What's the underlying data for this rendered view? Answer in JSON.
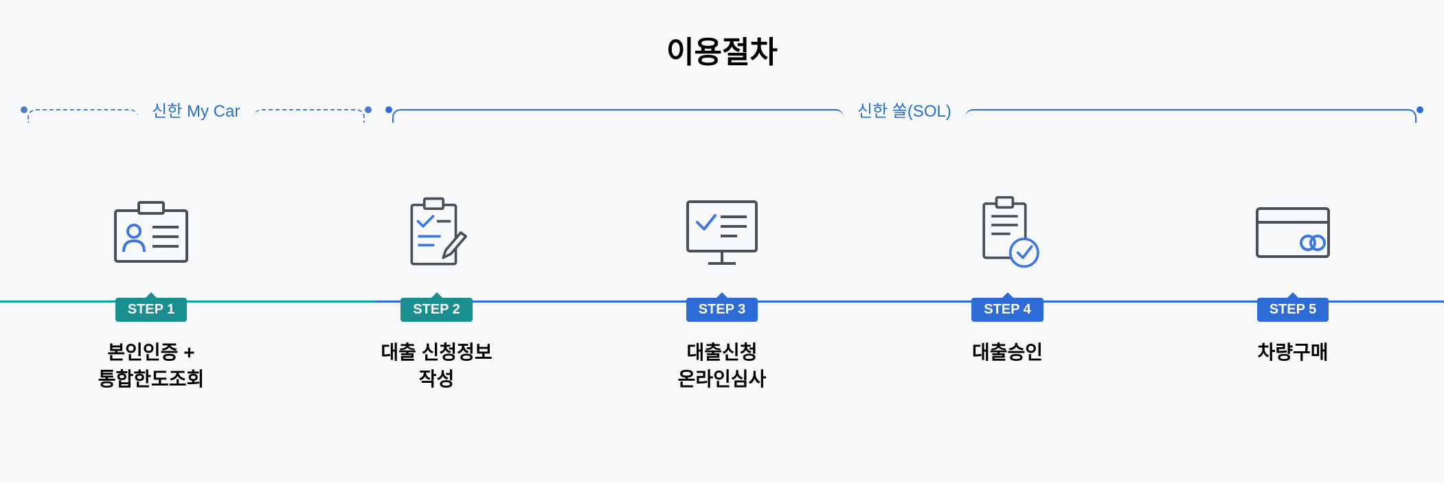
{
  "title": "이용절차",
  "colors": {
    "teal": "#0f9e9e",
    "blue": "#2e6bd6",
    "bracket_blue": "#4b7ec9",
    "text_blue": "#2a6fc9",
    "icon_gray": "#4a4f57",
    "icon_blue": "#3b77e0",
    "badge_teal": "#198f8f",
    "badge_blue": "#2e6bd6",
    "background": "#f7f8f9"
  },
  "brackets": [
    {
      "label": "신한 My Car",
      "style": "dashed",
      "color": "#4b7ec9",
      "text_color": "#2a6fc9",
      "left_pct": 0,
      "width_pct": 25
    },
    {
      "label": "신한 쏠(SOL)",
      "style": "solid",
      "color": "#2e6bd6",
      "text_color": "#2a6fc9",
      "left_pct": 26,
      "width_pct": 74
    }
  ],
  "progress_segments": [
    {
      "width_pct": 26,
      "color": "#0f9e9e"
    },
    {
      "width_pct": 74,
      "color": "#2e6bd6"
    }
  ],
  "steps": [
    {
      "badge": "STEP 1",
      "badge_color": "#198f8f",
      "desc": "본인인증 +\n통합한도조회",
      "icon": "id-card"
    },
    {
      "badge": "STEP 2",
      "badge_color": "#198f8f",
      "desc": "대출 신청정보\n작성",
      "icon": "clipboard-write"
    },
    {
      "badge": "STEP 3",
      "badge_color": "#2e6bd6",
      "desc": "대출신청\n온라인심사",
      "icon": "monitor-check"
    },
    {
      "badge": "STEP 4",
      "badge_color": "#2e6bd6",
      "desc": "대출승인",
      "icon": "doc-approve"
    },
    {
      "badge": "STEP 5",
      "badge_color": "#2e6bd6",
      "desc": "차량구매",
      "icon": "credit-card"
    }
  ],
  "typography": {
    "title_fontsize": 44,
    "bracket_label_fontsize": 24,
    "badge_fontsize": 20,
    "desc_fontsize": 28
  }
}
